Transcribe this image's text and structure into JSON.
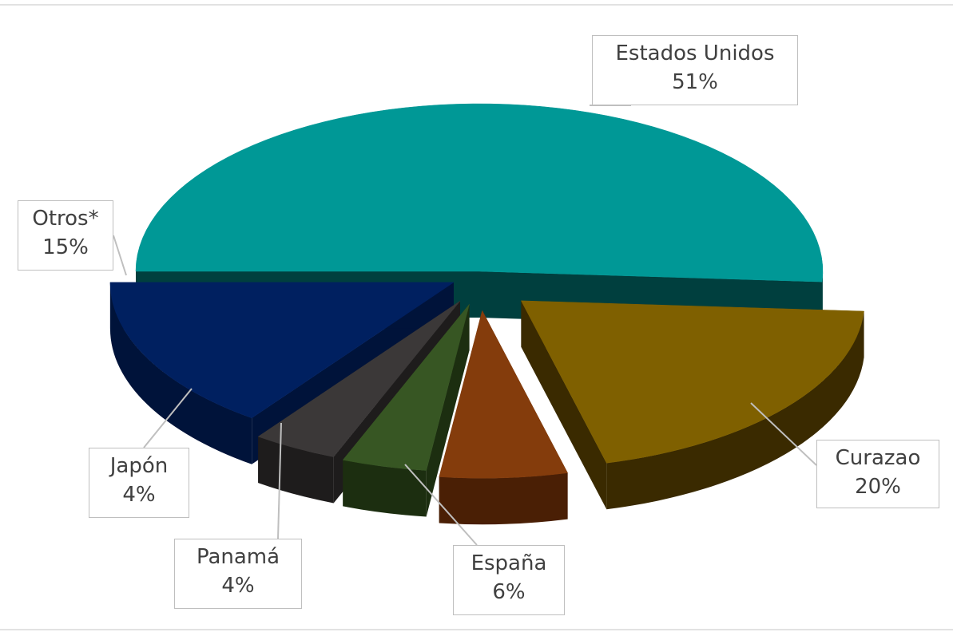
{
  "chart_data": {
    "type": "pie",
    "title": "",
    "style": "3d-exploded",
    "slices": [
      {
        "label": "Estados Unidos",
        "value": 51,
        "value_label": "51%",
        "color": "#009896",
        "side_color": "#003f3e"
      },
      {
        "label": "Curazao",
        "value": 20,
        "value_label": "20%",
        "color": "#7f6000",
        "side_color": "#3a2a00"
      },
      {
        "label": "España",
        "value": 6,
        "value_label": "6%",
        "color": "#843c0c",
        "side_color": "#4a1f05"
      },
      {
        "label": "Panamá",
        "value": 4,
        "value_label": "4%",
        "color": "#375623",
        "side_color": "#1c2e10"
      },
      {
        "label": "Japón",
        "value": 4,
        "value_label": "4%",
        "color": "#3b3838",
        "side_color": "#1e1c1c"
      },
      {
        "label": "Otros*",
        "value": 15,
        "value_label": "15%",
        "color": "#002060",
        "side_color": "#00133a"
      }
    ]
  }
}
